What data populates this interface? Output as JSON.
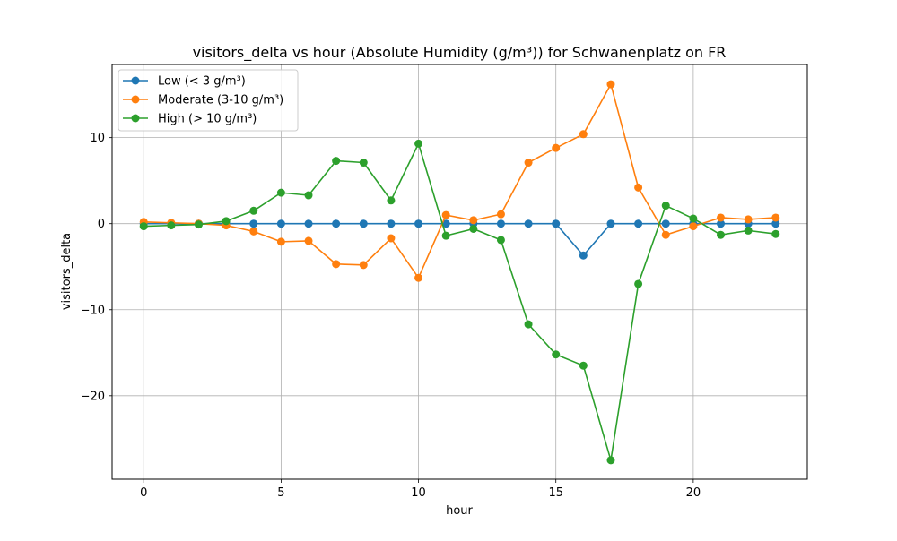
{
  "chart_data": {
    "type": "line",
    "title": "visitors_delta vs hour (Absolute Humidity (g/m³)) for Schwanenplatz on FR",
    "xlabel": "hour",
    "ylabel": "visitors_delta",
    "xlim": [
      -1.15,
      24.15
    ],
    "ylim": [
      -29.7,
      18.5
    ],
    "xticks": [
      0,
      5,
      10,
      15,
      20
    ],
    "yticks": [
      -20,
      -10,
      0,
      10
    ],
    "grid": true,
    "legend_position": "top-left",
    "x": [
      0,
      1,
      2,
      3,
      4,
      5,
      6,
      7,
      8,
      9,
      10,
      11,
      12,
      13,
      14,
      15,
      16,
      17,
      18,
      19,
      20,
      21,
      22,
      23
    ],
    "series": [
      {
        "name": "Low (< 3 g/m³)",
        "color": "#1f77b4",
        "values": [
          0,
          0,
          0,
          0,
          0,
          0,
          0,
          0,
          0,
          0,
          0,
          0,
          0,
          0,
          0,
          0,
          -3.7,
          0,
          0,
          0,
          0,
          0,
          0,
          0
        ]
      },
      {
        "name": "Moderate (3-10 g/m³)",
        "color": "#ff7f0e",
        "values": [
          0.2,
          0.1,
          0.0,
          -0.2,
          -0.9,
          -2.1,
          -2.0,
          -4.7,
          -4.8,
          -1.7,
          -6.3,
          1.0,
          0.4,
          1.1,
          7.1,
          8.8,
          10.4,
          16.2,
          4.2,
          -1.3,
          -0.3,
          0.7,
          0.5,
          0.7
        ]
      },
      {
        "name": "High (> 10 g/m³)",
        "color": "#2ca02c",
        "values": [
          -0.3,
          -0.2,
          -0.1,
          0.3,
          1.5,
          3.6,
          3.3,
          7.3,
          7.1,
          2.7,
          9.3,
          -1.4,
          -0.6,
          -1.9,
          -11.7,
          -15.2,
          -16.5,
          -27.5,
          -7.0,
          2.1,
          0.6,
          -1.3,
          -0.8,
          -1.2
        ]
      }
    ]
  }
}
